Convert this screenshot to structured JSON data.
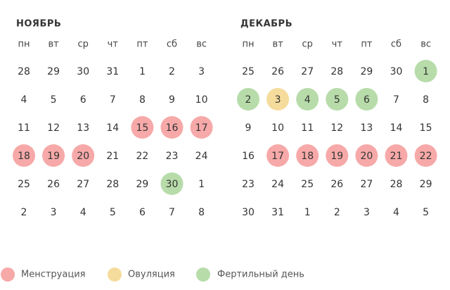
{
  "months": [
    {
      "title": "НОЯБРЬ",
      "weekdays": [
        "пн",
        "вт",
        "ср",
        "чт",
        "пт",
        "сб",
        "вс"
      ],
      "weeks": [
        [
          {
            "d": 28
          },
          {
            "d": 29
          },
          {
            "d": 30
          },
          {
            "d": 31
          },
          {
            "d": 1
          },
          {
            "d": 2
          },
          {
            "d": 3
          }
        ],
        [
          {
            "d": 4
          },
          {
            "d": 5
          },
          {
            "d": 6
          },
          {
            "d": 7
          },
          {
            "d": 8
          },
          {
            "d": 9
          },
          {
            "d": 10
          }
        ],
        [
          {
            "d": 11
          },
          {
            "d": 12
          },
          {
            "d": 13
          },
          {
            "d": 14
          },
          {
            "d": 15,
            "color": "#f6a9a8"
          },
          {
            "d": 16,
            "color": "#f6a9a8"
          },
          {
            "d": 17,
            "color": "#f6a9a8"
          }
        ],
        [
          {
            "d": 18,
            "color": "#f6a9a8"
          },
          {
            "d": 19,
            "color": "#f6a9a8"
          },
          {
            "d": 20,
            "color": "#f6a9a8"
          },
          {
            "d": 21
          },
          {
            "d": 22
          },
          {
            "d": 23
          },
          {
            "d": 24
          }
        ],
        [
          {
            "d": 25
          },
          {
            "d": 26
          },
          {
            "d": 27
          },
          {
            "d": 28
          },
          {
            "d": 29
          },
          {
            "d": 30,
            "color": "#b7dcaa"
          },
          {
            "d": 1
          }
        ],
        [
          {
            "d": 2
          },
          {
            "d": 3
          },
          {
            "d": 4
          },
          {
            "d": 5
          },
          {
            "d": 6
          },
          {
            "d": 7
          },
          {
            "d": 8
          }
        ]
      ]
    },
    {
      "title": "ДЕКАБРЬ",
      "weekdays": [
        "пн",
        "вт",
        "ср",
        "чт",
        "пт",
        "сб",
        "вс"
      ],
      "weeks": [
        [
          {
            "d": 25
          },
          {
            "d": 26
          },
          {
            "d": 27
          },
          {
            "d": 28
          },
          {
            "d": 29
          },
          {
            "d": 30
          },
          {
            "d": 1,
            "color": "#b7dcaa"
          }
        ],
        [
          {
            "d": 2,
            "color": "#b7dcaa"
          },
          {
            "d": 3,
            "color": "#f5dc9c"
          },
          {
            "d": 4,
            "color": "#b7dcaa"
          },
          {
            "d": 5,
            "color": "#b7dcaa"
          },
          {
            "d": 6,
            "color": "#b7dcaa"
          },
          {
            "d": 7
          },
          {
            "d": 8
          }
        ],
        [
          {
            "d": 9
          },
          {
            "d": 10
          },
          {
            "d": 11
          },
          {
            "d": 12
          },
          {
            "d": 13
          },
          {
            "d": 14
          },
          {
            "d": 15
          }
        ],
        [
          {
            "d": 16
          },
          {
            "d": 17,
            "color": "#f6a9a8"
          },
          {
            "d": 18,
            "color": "#f6a9a8"
          },
          {
            "d": 19,
            "color": "#f6a9a8"
          },
          {
            "d": 20,
            "color": "#f6a9a8"
          },
          {
            "d": 21,
            "color": "#f6a9a8"
          },
          {
            "d": 22,
            "color": "#f6a9a8"
          }
        ],
        [
          {
            "d": 23
          },
          {
            "d": 24
          },
          {
            "d": 25
          },
          {
            "d": 26
          },
          {
            "d": 27
          },
          {
            "d": 28
          },
          {
            "d": 29
          }
        ],
        [
          {
            "d": 30
          },
          {
            "d": 31
          },
          {
            "d": 1
          },
          {
            "d": 2
          },
          {
            "d": 3
          },
          {
            "d": 4
          },
          {
            "d": 5
          }
        ]
      ]
    }
  ],
  "legend": [
    {
      "label": "Менструация",
      "color": "#f6a9a8"
    },
    {
      "label": "Овуляция",
      "color": "#f5dc9c"
    },
    {
      "label": "Фертильный день",
      "color": "#b7dcaa"
    }
  ]
}
